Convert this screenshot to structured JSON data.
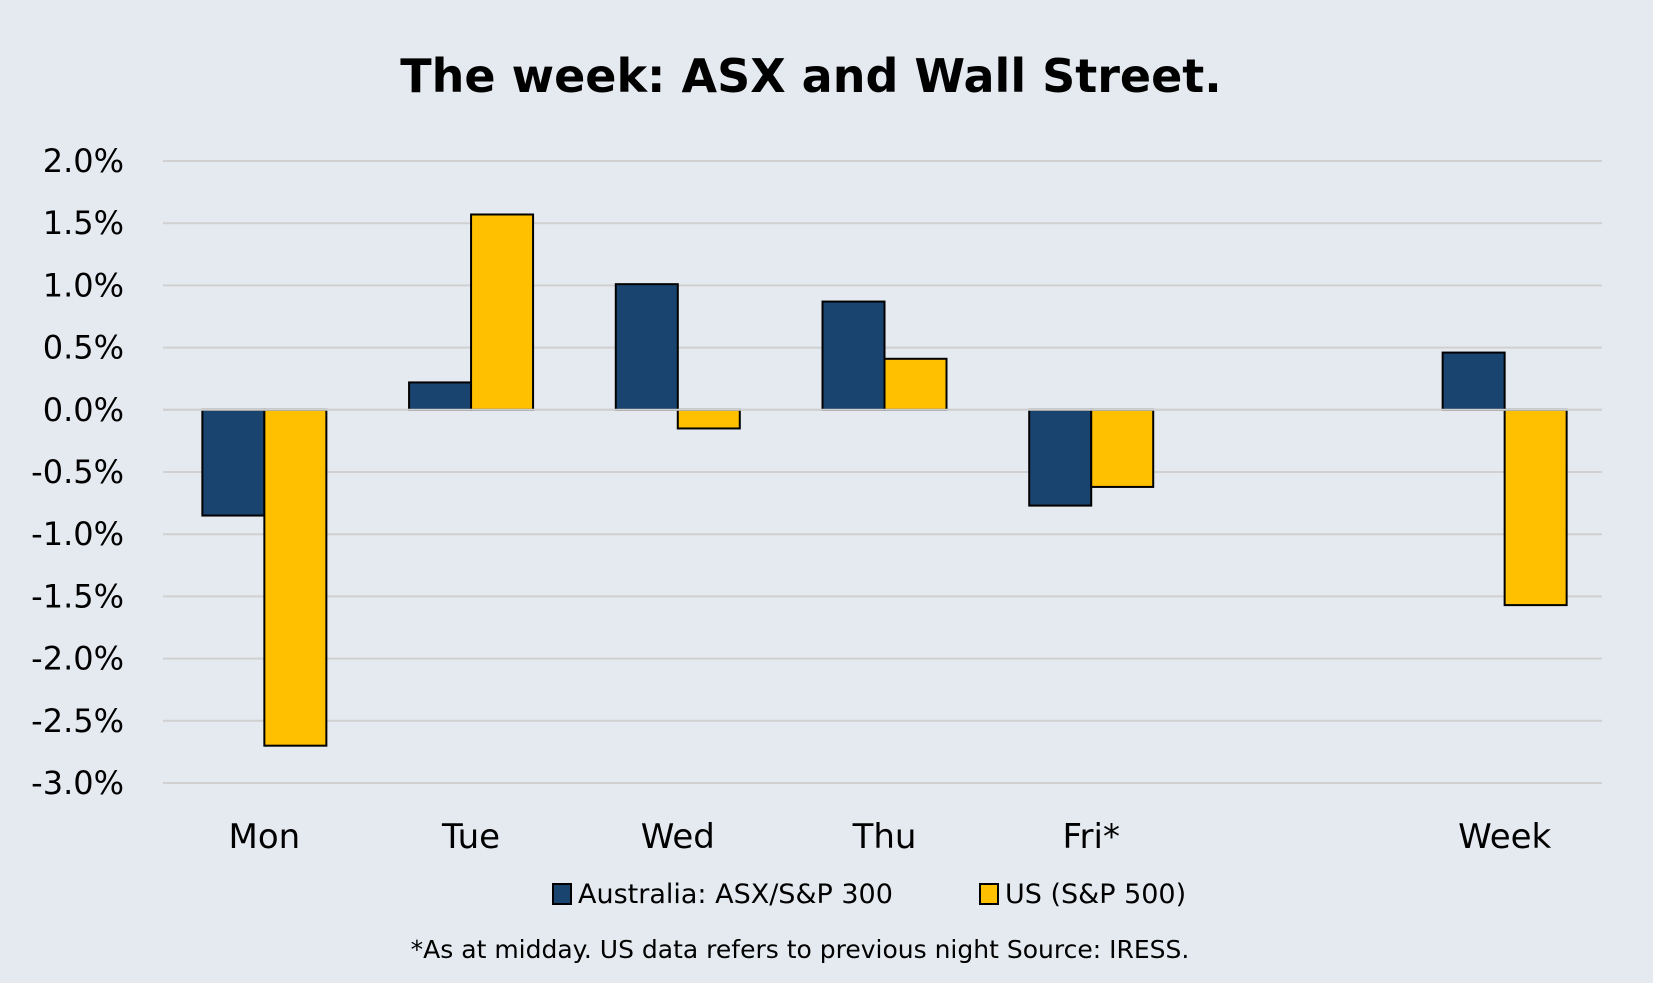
{
  "chart_data": {
    "type": "bar",
    "title": "The week:  ASX and Wall Street.",
    "categories": [
      "Mon",
      "Tue",
      "Wed",
      "Thu",
      "Fri*",
      "",
      "Week"
    ],
    "series": [
      {
        "name": "Australia: ASX/S&P 300",
        "color": "#1a4470",
        "values": [
          -0.85,
          0.22,
          1.01,
          0.87,
          -0.77,
          null,
          0.46
        ]
      },
      {
        "name": "US (S&P 500)",
        "color": "#ffc000",
        "values": [
          -2.7,
          1.57,
          -0.15,
          0.41,
          -0.62,
          null,
          -1.57
        ]
      }
    ],
    "ylim": [
      -3.0,
      2.0
    ],
    "yticks": [
      2.0,
      1.5,
      1.0,
      0.5,
      0.0,
      -0.5,
      -1.0,
      -1.5,
      -2.0,
      -2.5,
      -3.0
    ],
    "ytick_labels": [
      "2.0%",
      "1.5%",
      "1.0%",
      "0.5%",
      "0.0%",
      "-0.5%",
      "-1.0%",
      "-1.5%",
      "-2.0%",
      "-2.5%",
      "-3.0%"
    ],
    "xlabel": "",
    "ylabel": "",
    "grid": true,
    "legend": "bottom",
    "footnote": "*As at midday. US data refers to previous night  Source:  IRESS."
  }
}
